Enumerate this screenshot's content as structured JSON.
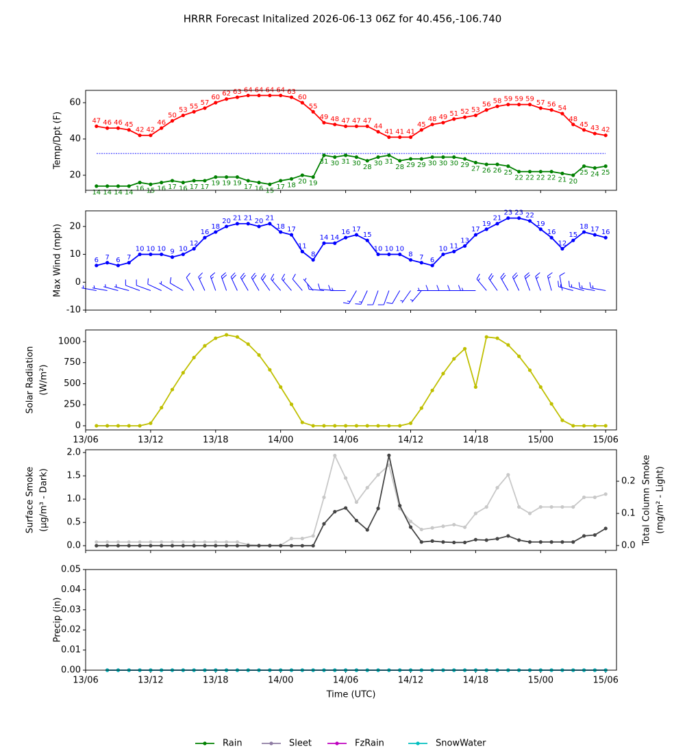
{
  "chart_data": [
    {
      "type": "line",
      "title": "HRRR Forecast Initalized 2026-06-13 06Z for 40.456,-106.740",
      "ylabel": [
        "Temp/Dpt (F)"
      ],
      "x": [
        1,
        2,
        3,
        4,
        5,
        6,
        7,
        8,
        9,
        10,
        11,
        12,
        13,
        14,
        15,
        16,
        17,
        18,
        19,
        20,
        21,
        22,
        23,
        24,
        25,
        26,
        27,
        28,
        29,
        30,
        31,
        32,
        33,
        34,
        35,
        36,
        37,
        38,
        39,
        40,
        41,
        42,
        43,
        44,
        45,
        46,
        47,
        48
      ],
      "xlim": [
        0,
        49
      ],
      "ylim": [
        11.7,
        66.8
      ],
      "yticks": [
        20,
        40,
        60
      ],
      "hline": {
        "value": 32,
        "color": "#0000ff"
      },
      "series": [
        {
          "color": "#ff0000",
          "data_labels": "above",
          "values": [
            47,
            46,
            46,
            45,
            42,
            42,
            46,
            50,
            53,
            55,
            57,
            60,
            62,
            63,
            64,
            64,
            64,
            64,
            63,
            60,
            55,
            49,
            48,
            47,
            47,
            47,
            44,
            41,
            41,
            41,
            45,
            48,
            49,
            51,
            52,
            53,
            56,
            58,
            59,
            59,
            59,
            57,
            56,
            54,
            48,
            45,
            43,
            42
          ]
        },
        {
          "color": "#008000",
          "data_labels": "below",
          "values": [
            14,
            14,
            14,
            14,
            16,
            15,
            16,
            17,
            16,
            17,
            17,
            19,
            19,
            19,
            17,
            16,
            15,
            17,
            18,
            20,
            19,
            31,
            30,
            31,
            30,
            28,
            30,
            31,
            28,
            29,
            29,
            30,
            30,
            30,
            29,
            27,
            26,
            26,
            25,
            22,
            22,
            22,
            22,
            21,
            20,
            25,
            24,
            25
          ]
        }
      ]
    },
    {
      "type": "line",
      "ylabel": [
        "Max Wind (mph)"
      ],
      "x": [
        1,
        2,
        3,
        4,
        5,
        6,
        7,
        8,
        9,
        10,
        11,
        12,
        13,
        14,
        15,
        16,
        17,
        18,
        19,
        20,
        21,
        22,
        23,
        24,
        25,
        26,
        27,
        28,
        29,
        30,
        31,
        32,
        33,
        34,
        35,
        36,
        37,
        38,
        39,
        40,
        41,
        42,
        43,
        44,
        45,
        46,
        47,
        48
      ],
      "xlim": [
        0,
        49
      ],
      "ylim": [
        -10,
        25.6
      ],
      "yticks": [
        -10,
        0,
        10,
        20
      ],
      "barb_level": -3,
      "wind_dir": [
        280,
        280,
        285,
        285,
        290,
        290,
        295,
        300,
        300,
        330,
        335,
        340,
        340,
        335,
        330,
        330,
        325,
        320,
        320,
        320,
        320,
        275,
        275,
        270,
        210,
        205,
        200,
        200,
        210,
        215,
        220,
        270,
        270,
        270,
        270,
        270,
        320,
        325,
        330,
        335,
        340,
        340,
        345,
        350,
        285,
        285,
        280,
        280
      ],
      "series": [
        {
          "color": "#0000ff",
          "data_labels": "above",
          "values": [
            6,
            7,
            6,
            7,
            10,
            10,
            10,
            9,
            10,
            12,
            16,
            18,
            20,
            21,
            21,
            20,
            21,
            18,
            17,
            11,
            8,
            14,
            14,
            16,
            17,
            15,
            10,
            10,
            10,
            8,
            7,
            6,
            10,
            11,
            13,
            17,
            19,
            21,
            23,
            23,
            22,
            19,
            16,
            12,
            15,
            18,
            17,
            16
          ]
        }
      ]
    },
    {
      "type": "line",
      "ylabel": [
        "Solar Radiation",
        "(W/m²)"
      ],
      "x": [
        1,
        2,
        3,
        4,
        5,
        6,
        7,
        8,
        9,
        10,
        11,
        12,
        13,
        14,
        15,
        16,
        17,
        18,
        19,
        20,
        21,
        22,
        23,
        24,
        25,
        26,
        27,
        28,
        29,
        30,
        31,
        32,
        33,
        34,
        35,
        36,
        37,
        38,
        39,
        40,
        41,
        42,
        43,
        44,
        45,
        46,
        47,
        48
      ],
      "xlim": [
        0,
        49
      ],
      "ylim": [
        -49,
        1138
      ],
      "yticks": [
        0,
        250,
        500,
        750,
        1000
      ],
      "xticks": [
        {
          "value": 0,
          "label": "13/06"
        },
        {
          "value": 6,
          "label": "13/12"
        },
        {
          "value": 12,
          "label": "13/18"
        },
        {
          "value": 18,
          "label": "14/00"
        },
        {
          "value": 24,
          "label": "14/06"
        },
        {
          "value": 30,
          "label": "14/12"
        },
        {
          "value": 36,
          "label": "14/18"
        },
        {
          "value": 42,
          "label": "15/00"
        },
        {
          "value": 48,
          "label": "15/06"
        }
      ],
      "series": [
        {
          "color": "#bfbf00",
          "values": [
            0,
            0,
            0,
            0,
            0,
            30,
            215,
            430,
            630,
            810,
            950,
            1040,
            1080,
            1055,
            970,
            840,
            665,
            460,
            255,
            40,
            0,
            0,
            0,
            0,
            0,
            0,
            0,
            0,
            0,
            30,
            210,
            420,
            620,
            795,
            915,
            460,
            1055,
            1040,
            960,
            825,
            660,
            460,
            260,
            65,
            0,
            0,
            0,
            0
          ]
        }
      ]
    },
    {
      "type": "line",
      "ylabel": [
        "Surface Smoke",
        "(μg/m³ - Dark)"
      ],
      "y2label": [
        "Total Column Smoke",
        "(mg/m² - Light)"
      ],
      "x": [
        1,
        2,
        3,
        4,
        5,
        6,
        7,
        8,
        9,
        10,
        11,
        12,
        13,
        14,
        15,
        16,
        17,
        18,
        19,
        20,
        21,
        22,
        23,
        24,
        25,
        26,
        27,
        28,
        29,
        30,
        31,
        32,
        33,
        34,
        35,
        36,
        37,
        38,
        39,
        40,
        41,
        42,
        43,
        44,
        45,
        46,
        47,
        48
      ],
      "xlim": [
        0,
        49
      ],
      "ylim": [
        -0.1,
        2.06
      ],
      "yticks": [
        {
          "value": 0,
          "label": "0.0"
        },
        0.5,
        {
          "value": 1,
          "label": "1.0"
        },
        1.5,
        {
          "value": 2,
          "label": "2.0"
        }
      ],
      "y2lim": [
        -0.015,
        0.298
      ],
      "y2ticks": [
        {
          "value": 0,
          "label": "0.0"
        },
        0.1,
        0.2
      ],
      "series": [
        {
          "color": "#c8c8c8",
          "axis": "y2",
          "values": [
            0.011,
            0.011,
            0.011,
            0.011,
            0.011,
            0.011,
            0.011,
            0.011,
            0.011,
            0.011,
            0.011,
            0.011,
            0.011,
            0.011,
            0.003,
            0.001,
            0.001,
            0.001,
            0.022,
            0.022,
            0.03,
            0.15,
            0.28,
            0.21,
            0.135,
            0.18,
            0.22,
            0.25,
            0.115,
            0.075,
            0.05,
            0.055,
            0.06,
            0.065,
            0.057,
            0.1,
            0.12,
            0.18,
            0.22,
            0.12,
            0.1,
            0.12,
            0.12,
            0.12,
            0.12,
            0.15,
            0.15,
            0.16
          ]
        },
        {
          "color": "#444444",
          "values": [
            0,
            0,
            0,
            0,
            0,
            0,
            0,
            0,
            0,
            0,
            0,
            0,
            0,
            0,
            0,
            0,
            0,
            0,
            0,
            0,
            0,
            0.47,
            0.73,
            0.81,
            0.54,
            0.34,
            0.8,
            1.94,
            0.86,
            0.4,
            0.08,
            0.1,
            0.08,
            0.07,
            0.07,
            0.13,
            0.12,
            0.15,
            0.21,
            0.12,
            0.08,
            0.08,
            0.08,
            0.08,
            0.08,
            0.21,
            0.23,
            0.37
          ]
        }
      ]
    },
    {
      "type": "line",
      "ylabel": [
        "Precip (in)"
      ],
      "xlabel": "Time (UTC)",
      "legend": "lower center",
      "x": [
        2,
        3,
        4,
        5,
        6,
        7,
        8,
        9,
        10,
        11,
        12,
        13,
        14,
        15,
        16,
        17,
        18,
        19,
        20,
        21,
        22,
        23,
        24,
        25,
        26,
        27,
        28,
        29,
        30,
        31,
        32,
        33,
        34,
        35,
        36,
        37,
        38,
        39,
        40,
        41,
        42,
        43,
        44,
        45,
        46,
        47,
        48
      ],
      "xlim": [
        0,
        49
      ],
      "ylim": [
        0,
        0.05
      ],
      "yticks": [
        {
          "value": 0,
          "label": "0.00"
        },
        0.01,
        0.02,
        0.03,
        0.04,
        0.05
      ],
      "xticks": [
        {
          "value": 0,
          "label": "13/06"
        },
        {
          "value": 6,
          "label": "13/12"
        },
        {
          "value": 12,
          "label": "13/18"
        },
        {
          "value": 18,
          "label": "14/00"
        },
        {
          "value": 24,
          "label": "14/06"
        },
        {
          "value": 30,
          "label": "14/12"
        },
        {
          "value": 36,
          "label": "14/18"
        },
        {
          "value": 42,
          "label": "15/00"
        },
        {
          "value": 48,
          "label": "15/06"
        }
      ],
      "series": [
        {
          "name": "Rain",
          "color": "#008000",
          "values": [
            0,
            0,
            0,
            0,
            0,
            0,
            0,
            0,
            0,
            0,
            0,
            0,
            0,
            0,
            0,
            0,
            0,
            0,
            0,
            0,
            0,
            0,
            0,
            0,
            0,
            0,
            0,
            0,
            0,
            0,
            0,
            0,
            0,
            0,
            0,
            0,
            0,
            0,
            0,
            0,
            0,
            0,
            0,
            0,
            0,
            0,
            0
          ]
        },
        {
          "name": "Sleet",
          "color": "#8e7ba3",
          "values": [
            0,
            0,
            0,
            0,
            0,
            0,
            0,
            0,
            0,
            0,
            0,
            0,
            0,
            0,
            0,
            0,
            0,
            0,
            0,
            0,
            0,
            0,
            0,
            0,
            0,
            0,
            0,
            0,
            0,
            0,
            0,
            0,
            0,
            0,
            0,
            0,
            0,
            0,
            0,
            0,
            0,
            0,
            0,
            0,
            0,
            0,
            0
          ]
        },
        {
          "name": "FzRain",
          "color": "#bf00bf",
          "values": [
            0,
            0,
            0,
            0,
            0,
            0,
            0,
            0,
            0,
            0,
            0,
            0,
            0,
            0,
            0,
            0,
            0,
            0,
            0,
            0,
            0,
            0,
            0,
            0,
            0,
            0,
            0,
            0,
            0,
            0,
            0,
            0,
            0,
            0,
            0,
            0,
            0,
            0,
            0,
            0,
            0,
            0,
            0,
            0,
            0,
            0,
            0
          ]
        },
        {
          "name": "SnowWater",
          "color": "#00bfbf",
          "values": [
            0,
            0,
            0,
            0,
            0,
            0,
            0,
            0,
            0,
            0,
            0,
            0,
            0,
            0,
            0,
            0,
            0,
            0,
            0,
            0,
            0,
            0,
            0,
            0,
            0,
            0,
            0,
            0,
            0,
            0,
            0,
            0,
            0,
            0,
            0,
            0,
            0,
            0,
            0,
            0,
            0,
            0,
            0,
            0,
            0,
            0,
            0
          ]
        }
      ]
    }
  ]
}
